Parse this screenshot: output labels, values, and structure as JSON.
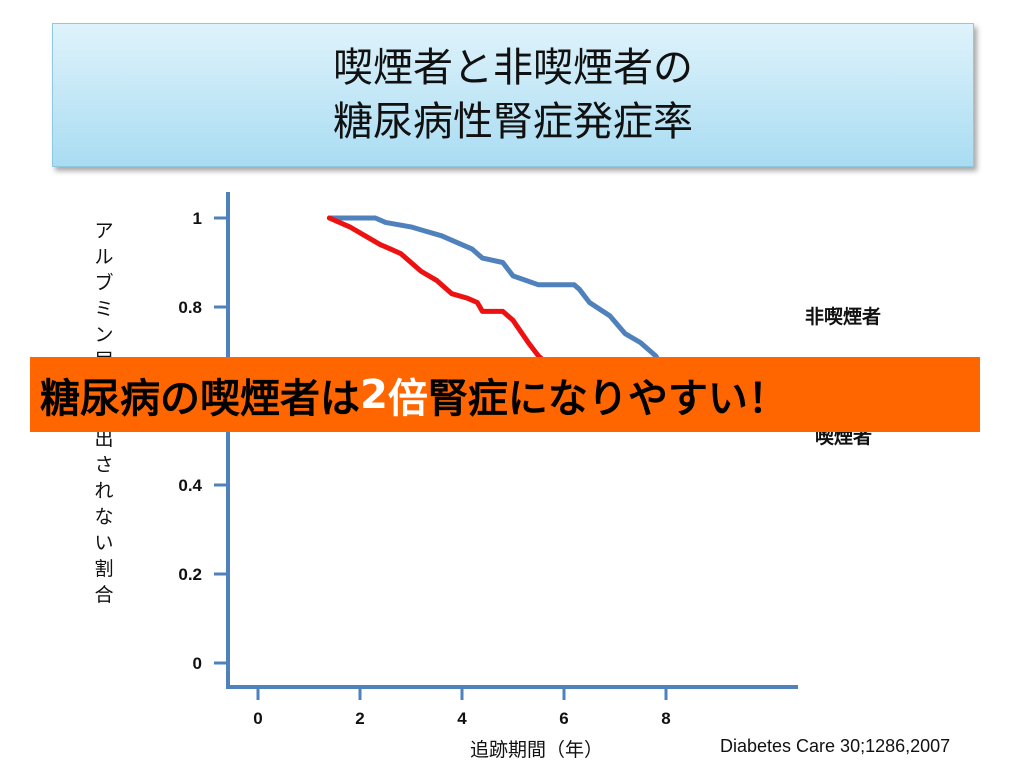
{
  "title": {
    "line1": "喫煙者と非喫煙者の",
    "line2": "糖尿病性腎症発症率"
  },
  "y_axis_label": "アルブミン尿が検出されない割合",
  "x_axis_label": "追跡期間（年）",
  "citation": "Diabetes Care 30;1286,2007",
  "banner": {
    "before": "糖尿病の喫煙者は",
    "highlight_num": "2",
    "highlight_char": "倍",
    "after": "腎症になりやすい！"
  },
  "colors": {
    "non_smoker": "#4f81bd",
    "smoker": "#ee1111",
    "axis": "#4f81bd",
    "banner": "#ff6600"
  },
  "chart_data": {
    "type": "line",
    "xlabel": "追跡期間（年）",
    "ylabel": "アルブミン尿が検出されない割合",
    "xlim": [
      0,
      10.5
    ],
    "ylim": [
      0,
      1
    ],
    "x_ticks": [
      "0",
      "2",
      "4",
      "6",
      "8"
    ],
    "y_ticks": [
      "0",
      "0.2",
      "0.4",
      "0.8",
      "1"
    ],
    "series": [
      {
        "name": "非喫煙者",
        "color": "#4f81bd",
        "points": [
          [
            1.4,
            1.0
          ],
          [
            2.3,
            1.0
          ],
          [
            2.5,
            0.99
          ],
          [
            3.0,
            0.98
          ],
          [
            3.3,
            0.97
          ],
          [
            3.6,
            0.96
          ],
          [
            4.0,
            0.94
          ],
          [
            4.2,
            0.93
          ],
          [
            4.4,
            0.91
          ],
          [
            4.8,
            0.9
          ],
          [
            5.0,
            0.87
          ],
          [
            5.5,
            0.85
          ],
          [
            6.2,
            0.85
          ],
          [
            6.3,
            0.84
          ],
          [
            6.5,
            0.81
          ],
          [
            6.9,
            0.78
          ],
          [
            7.2,
            0.74
          ],
          [
            7.5,
            0.72
          ],
          [
            7.8,
            0.69
          ],
          [
            7.9,
            0.67
          ],
          [
            9.1,
            0.67
          ]
        ]
      },
      {
        "name": "喫煙者",
        "color": "#ee1111",
        "points": [
          [
            1.4,
            1.0
          ],
          [
            1.8,
            0.98
          ],
          [
            2.1,
            0.96
          ],
          [
            2.4,
            0.94
          ],
          [
            2.6,
            0.93
          ],
          [
            2.8,
            0.92
          ],
          [
            3.0,
            0.9
          ],
          [
            3.2,
            0.88
          ],
          [
            3.5,
            0.86
          ],
          [
            3.8,
            0.83
          ],
          [
            4.1,
            0.82
          ],
          [
            4.3,
            0.81
          ],
          [
            4.4,
            0.79
          ],
          [
            4.8,
            0.79
          ],
          [
            5.0,
            0.77
          ],
          [
            5.3,
            0.72
          ],
          [
            5.5,
            0.69
          ],
          [
            5.8,
            0.66
          ],
          [
            6.0,
            0.63
          ]
        ]
      }
    ],
    "series_labels": [
      {
        "name": "非喫煙者",
        "text": "非喫煙者"
      },
      {
        "name": "喫煙者",
        "text": "喫煙者"
      }
    ]
  }
}
